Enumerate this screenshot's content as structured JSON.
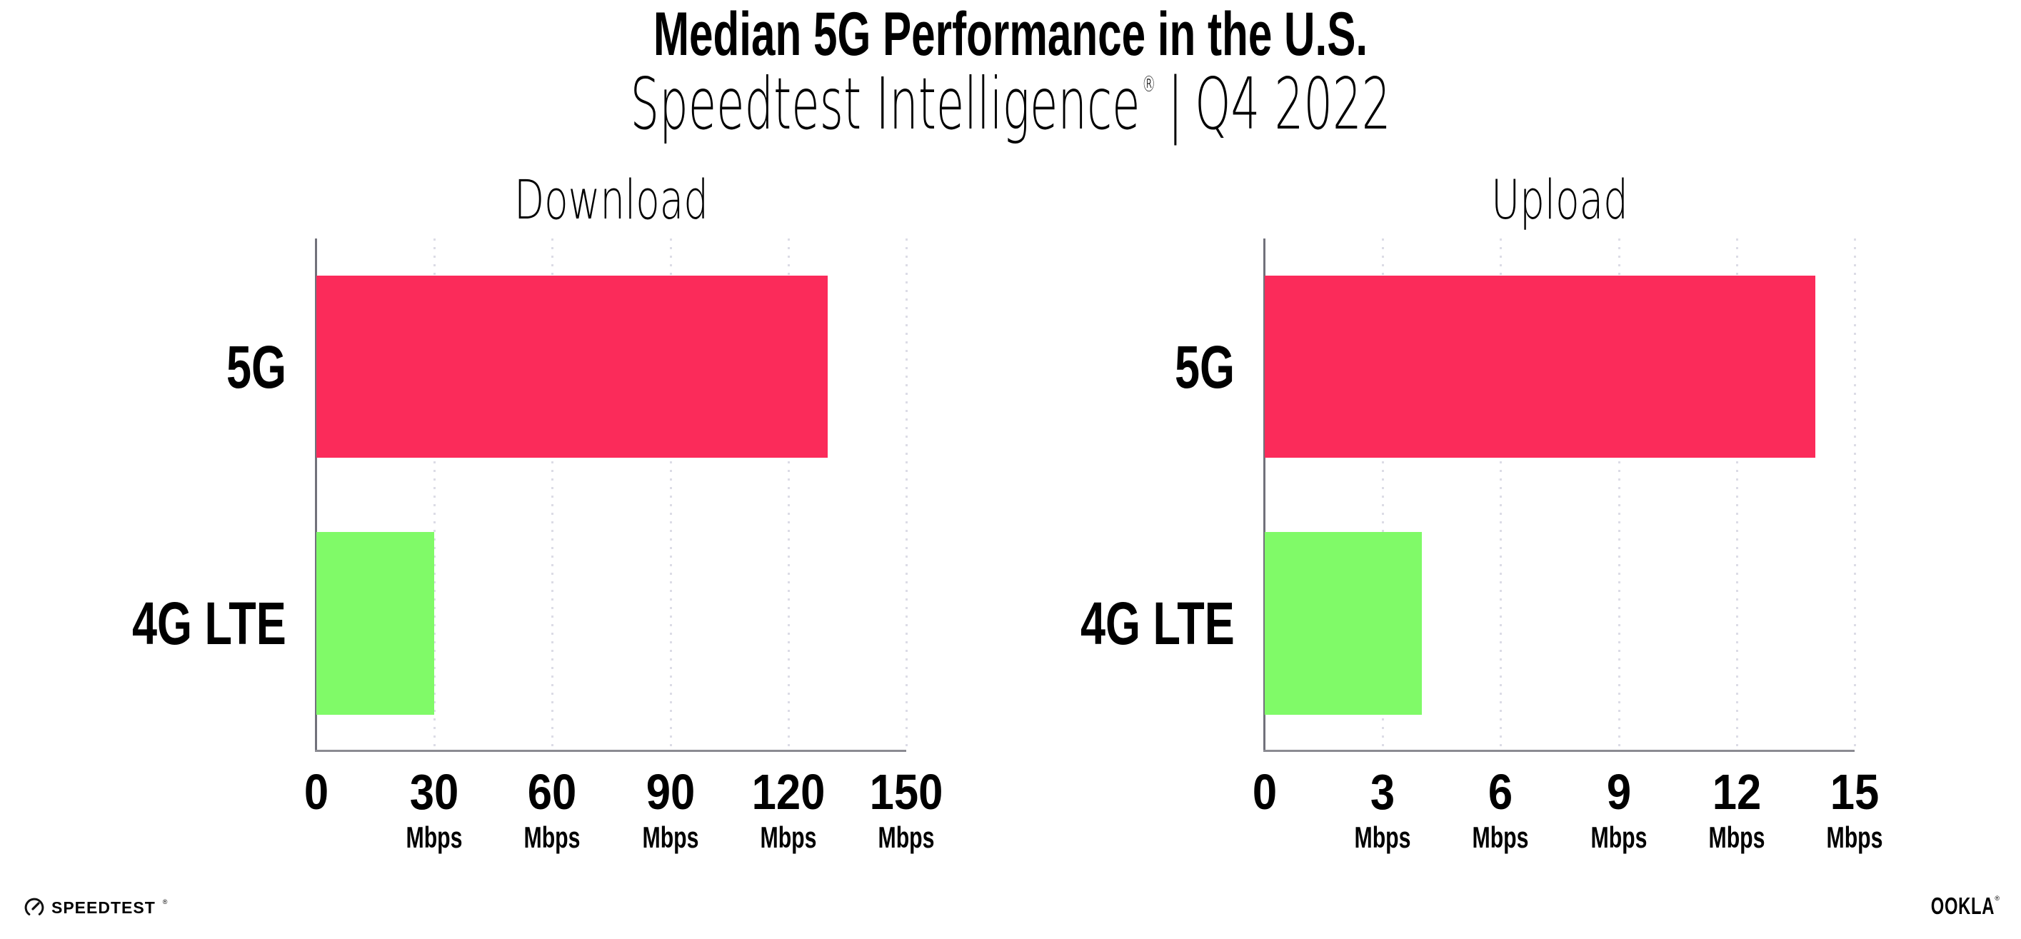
{
  "header": {
    "title": "Median 5G Performance in the U.S.",
    "subtitle_brand": "Speedtest Intelligence",
    "subtitle_reg": "®",
    "subtitle_sep": "|",
    "subtitle_period": "Q4 2022"
  },
  "footer": {
    "speedtest_label": "SPEEDTEST",
    "speedtest_reg": "®",
    "ookla_label": "OOKLA",
    "ookla_reg": "®"
  },
  "colors": {
    "bar_5g": "#fb2b5a",
    "bar_4g_lte": "#80fa68",
    "axis": "#8b8b92",
    "gridline": "#dcdce6",
    "text": "#000000"
  },
  "chart_data": [
    {
      "type": "bar",
      "orientation": "horizontal",
      "title": "Download",
      "categories": [
        "5G",
        "4G LTE"
      ],
      "values": [
        130,
        30
      ],
      "unit": "Mbps",
      "xlabel": "",
      "ylabel": "",
      "xlim": [
        0,
        150
      ],
      "xticks": [
        0,
        30,
        60,
        90,
        120,
        150
      ],
      "grid": "vertical-dotted",
      "legend": "none"
    },
    {
      "type": "bar",
      "orientation": "horizontal",
      "title": "Upload",
      "categories": [
        "5G",
        "4G LTE"
      ],
      "values": [
        14,
        4
      ],
      "unit": "Mbps",
      "xlabel": "",
      "ylabel": "",
      "xlim": [
        0,
        15
      ],
      "xticks": [
        0,
        3,
        6,
        9,
        12,
        15
      ],
      "grid": "vertical-dotted",
      "legend": "none"
    }
  ]
}
